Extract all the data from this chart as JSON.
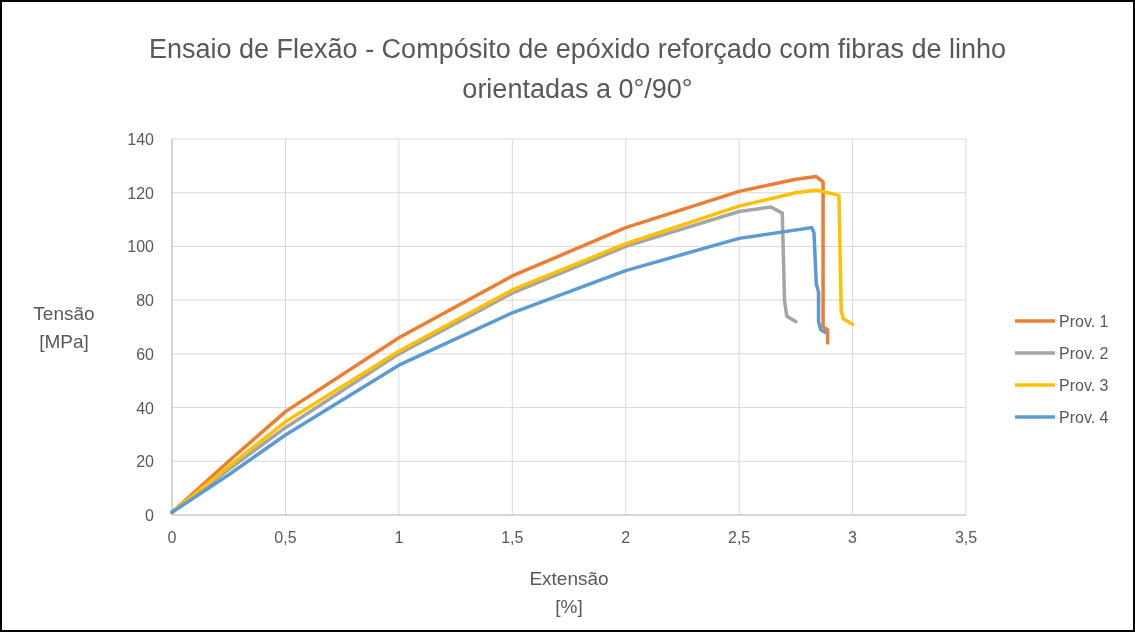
{
  "chart_data": {
    "type": "line",
    "title": "Ensaio de Flexão - Compósito de epóxido reforçado com fibras de linho orientadas a 0°/90°",
    "xlabel": "Extensão\n[%]",
    "ylabel": "Tensão\n[MPa]",
    "xlim": [
      0,
      3.5
    ],
    "xticks": [
      0,
      {
        "value": 0.5,
        "label": "0,5"
      },
      1,
      {
        "value": 1.5,
        "label": "1,5"
      },
      2,
      {
        "value": 2.5,
        "label": "2,5"
      },
      3,
      {
        "value": 3.5,
        "label": "3,5"
      }
    ],
    "ylim": [
      0,
      140
    ],
    "yticks": [
      0,
      20,
      40,
      60,
      80,
      100,
      120,
      140
    ],
    "grid": true,
    "legend": "right",
    "marker": "none",
    "line_style": "solid",
    "series": [
      {
        "name": "Prov. 1",
        "color": "#ed7d31",
        "x": [
          0,
          0.25,
          0.5,
          1,
          1.5,
          2,
          2.5,
          2.75,
          2.84,
          2.87,
          2.87,
          2.89,
          2.89
        ],
        "values": [
          1,
          20,
          38.5,
          66,
          89,
          107,
          120.5,
          125,
          126,
          124,
          70,
          69,
          64
        ]
      },
      {
        "name": "Prov. 2",
        "color": "#a5a5a5",
        "x": [
          0,
          0.25,
          0.5,
          1,
          1.5,
          2,
          2.5,
          2.64,
          2.69,
          2.7,
          2.71,
          2.75
        ],
        "values": [
          1,
          17,
          32.5,
          60,
          82.6,
          100,
          113,
          114.7,
          112.4,
          80,
          74,
          72
        ]
      },
      {
        "name": "Prov. 3",
        "color": "#ffc000",
        "x": [
          0,
          0.25,
          0.5,
          1,
          1.5,
          2,
          2.5,
          2.75,
          2.84,
          2.94,
          2.95,
          2.96,
          3.0
        ],
        "values": [
          1,
          18,
          34.7,
          61,
          83.8,
          101,
          115,
          120,
          121,
          119,
          76,
          73,
          71
        ]
      },
      {
        "name": "Prov. 4",
        "color": "#5b9bd5",
        "x": [
          0,
          0.25,
          0.5,
          1,
          1.5,
          2,
          2.5,
          2.82,
          2.83,
          2.84,
          2.85,
          2.85,
          2.86,
          2.88
        ],
        "values": [
          1,
          15,
          29.8,
          55.8,
          75.3,
          91,
          103,
          107,
          105,
          86,
          83,
          72,
          69,
          68
        ]
      }
    ]
  }
}
